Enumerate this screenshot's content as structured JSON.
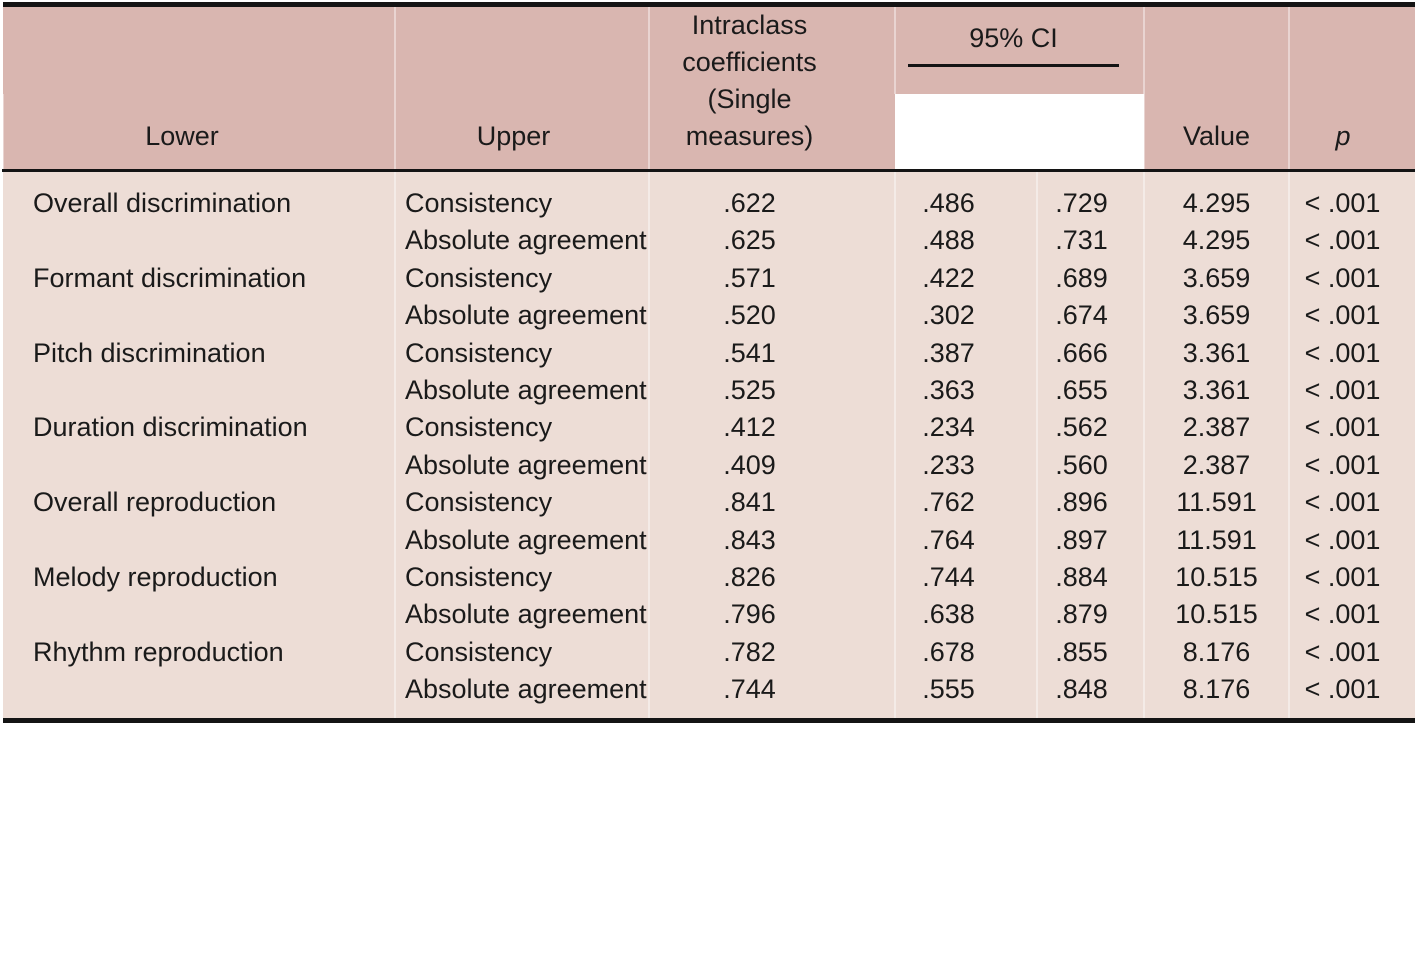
{
  "colors": {
    "header_background": "#d9b6b0",
    "body_background": "#edddd6",
    "rule": "#141414",
    "separator": "#f2e4e0",
    "text": "#1a1a1a"
  },
  "header": {
    "intraclass": "Intraclass coefficients (Single measures)",
    "ci": "95% CI",
    "lower": "Lower",
    "upper": "Upper",
    "value": "Value",
    "p": "p"
  },
  "measures": {
    "consistency": "Consistency",
    "absolute": "Absolute agreement"
  },
  "rows": [
    {
      "label": "Overall discrimination",
      "consistency": {
        "icc": ".622",
        "lower": ".486",
        "upper": ".729",
        "value": "4.295",
        "p": "< .001"
      },
      "absolute": {
        "icc": ".625",
        "lower": ".488",
        "upper": ".731",
        "value": "4.295",
        "p": "< .001"
      }
    },
    {
      "label": "Formant discrimination",
      "consistency": {
        "icc": ".571",
        "lower": ".422",
        "upper": ".689",
        "value": "3.659",
        "p": "< .001"
      },
      "absolute": {
        "icc": ".520",
        "lower": ".302",
        "upper": ".674",
        "value": "3.659",
        "p": "< .001"
      }
    },
    {
      "label": "Pitch discrimination",
      "consistency": {
        "icc": ".541",
        "lower": ".387",
        "upper": ".666",
        "value": "3.361",
        "p": "< .001"
      },
      "absolute": {
        "icc": ".525",
        "lower": ".363",
        "upper": ".655",
        "value": "3.361",
        "p": "< .001"
      }
    },
    {
      "label": "Duration discrimination",
      "consistency": {
        "icc": ".412",
        "lower": ".234",
        "upper": ".562",
        "value": "2.387",
        "p": "< .001"
      },
      "absolute": {
        "icc": ".409",
        "lower": ".233",
        "upper": ".560",
        "value": "2.387",
        "p": "< .001"
      }
    },
    {
      "label": "Overall reproduction",
      "consistency": {
        "icc": ".841",
        "lower": ".762",
        "upper": ".896",
        "value": "11.591",
        "p": "< .001"
      },
      "absolute": {
        "icc": ".843",
        "lower": ".764",
        "upper": ".897",
        "value": "11.591",
        "p": "< .001"
      }
    },
    {
      "label": "Melody reproduction",
      "consistency": {
        "icc": ".826",
        "lower": ".744",
        "upper": ".884",
        "value": "10.515",
        "p": "< .001"
      },
      "absolute": {
        "icc": ".796",
        "lower": ".638",
        "upper": ".879",
        "value": "10.515",
        "p": "< .001"
      }
    },
    {
      "label": "Rhythm reproduction",
      "consistency": {
        "icc": ".782",
        "lower": ".678",
        "upper": ".855",
        "value": "8.176",
        "p": "< .001"
      },
      "absolute": {
        "icc": ".744",
        "lower": ".555",
        "upper": ".848",
        "value": "8.176",
        "p": "< .001"
      }
    }
  ]
}
